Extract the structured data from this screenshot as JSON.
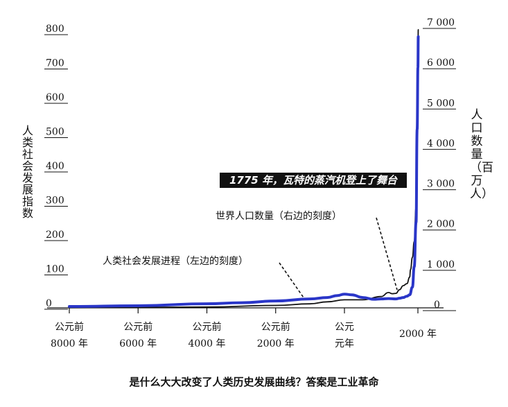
{
  "chart_data": {
    "type": "line",
    "left_axis": {
      "label": "人类社会发展指数",
      "ticks": [
        "0",
        "100",
        "200",
        "300",
        "400",
        "500",
        "600",
        "700",
        "800"
      ],
      "range": [
        0,
        800
      ]
    },
    "right_axis": {
      "label": "人口数量（百万人）",
      "ticks": [
        "0",
        "1 000",
        "2 000",
        "3 000",
        "4 000",
        "5 000",
        "6 000",
        "7 000"
      ],
      "range": [
        0,
        7000
      ]
    },
    "x_ticks": [
      {
        "year": -8000,
        "line1": "公元前",
        "line2": "8000 年"
      },
      {
        "year": -6000,
        "line1": "公元前",
        "line2": "6000 年"
      },
      {
        "year": -4000,
        "line1": "公元前",
        "line2": "4000 年"
      },
      {
        "year": -2000,
        "line1": "公元前",
        "line2": "2000 年"
      },
      {
        "year": 0,
        "line1": "公元",
        "line2": "元年"
      },
      {
        "year": 2000,
        "line1": "",
        "line2": "2000 年"
      }
    ],
    "series": [
      {
        "name": "人类社会发展进程（左边的刻度）",
        "axis": "left",
        "color": "#2a36c8",
        "points": [
          [
            -8000,
            4
          ],
          [
            -6000,
            6
          ],
          [
            -4000,
            12
          ],
          [
            -3000,
            15
          ],
          [
            -2000,
            20
          ],
          [
            -1000,
            26
          ],
          [
            -500,
            30
          ],
          [
            -200,
            36
          ],
          [
            0,
            40
          ],
          [
            200,
            38
          ],
          [
            500,
            30
          ],
          [
            800,
            25
          ],
          [
            1000,
            26
          ],
          [
            1200,
            27
          ],
          [
            1400,
            26
          ],
          [
            1500,
            28
          ],
          [
            1600,
            30
          ],
          [
            1700,
            34
          ],
          [
            1775,
            38
          ],
          [
            1850,
            60
          ],
          [
            1900,
            120
          ],
          [
            1950,
            250
          ],
          [
            1980,
            520
          ],
          [
            2000,
            700
          ],
          [
            2010,
            790
          ]
        ]
      },
      {
        "name": "世界人口数量（右边的刻度）",
        "axis": "right",
        "color": "#111111",
        "points": [
          [
            -8000,
            5
          ],
          [
            -4000,
            20
          ],
          [
            -2000,
            60
          ],
          [
            -1000,
            100
          ],
          [
            -500,
            150
          ],
          [
            0,
            200
          ],
          [
            500,
            200
          ],
          [
            1000,
            280
          ],
          [
            1200,
            380
          ],
          [
            1300,
            350
          ],
          [
            1400,
            360
          ],
          [
            1500,
            450
          ],
          [
            1600,
            550
          ],
          [
            1700,
            600
          ],
          [
            1775,
            760
          ],
          [
            1800,
            950
          ],
          [
            1850,
            1250
          ],
          [
            1900,
            1650
          ],
          [
            1950,
            2500
          ],
          [
            1975,
            4000
          ],
          [
            2000,
            6100
          ],
          [
            2010,
            6900
          ]
        ]
      }
    ],
    "annotations": {
      "left_series_label": "人类社会发展进程（左边的刻度）",
      "right_series_label": "世界人口数量（右边的刻度）",
      "event_banner": "1775 年，瓦特的蒸汽机登上了舞台"
    },
    "caption": "是什么大大改变了人类历史发展曲线？答案是工业革命"
  }
}
